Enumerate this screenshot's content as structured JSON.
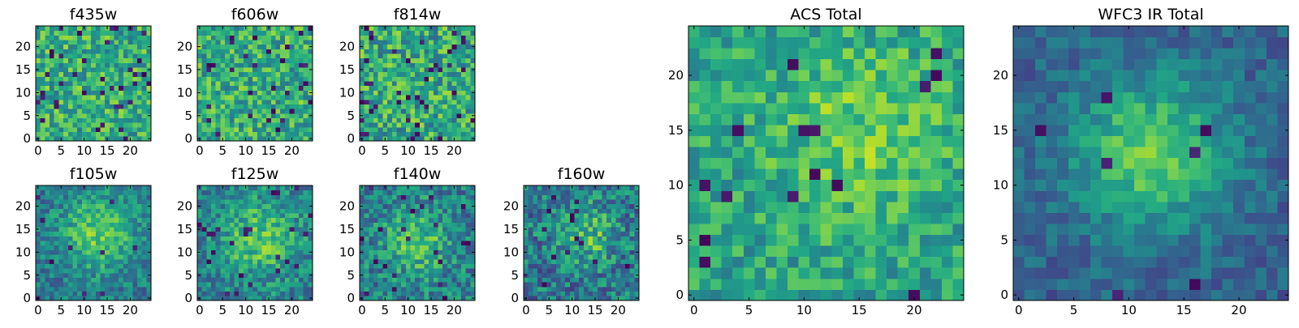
{
  "figure": {
    "background": "#ffffff",
    "colormap": "viridis"
  },
  "chart_data": [
    {
      "type": "heatmap",
      "title": "f435w",
      "grid_size": 25,
      "xlim": [
        0,
        24
      ],
      "ylim": [
        0,
        24
      ],
      "xticks": [
        "0",
        "5",
        "10",
        "15",
        "20"
      ],
      "yticks": [
        "0",
        "5",
        "10",
        "15",
        "20"
      ],
      "pattern": "noise",
      "seed": 3,
      "peak": 0.0,
      "base": 0.62,
      "noise": 0.24,
      "speckle": 0.05
    },
    {
      "type": "heatmap",
      "title": "f606w",
      "grid_size": 25,
      "xlim": [
        0,
        24
      ],
      "ylim": [
        0,
        24
      ],
      "xticks": [
        "0",
        "5",
        "10",
        "15",
        "20"
      ],
      "yticks": [
        "0",
        "5",
        "10",
        "15",
        "20"
      ],
      "pattern": "noise",
      "seed": 7,
      "peak": 0.0,
      "base": 0.62,
      "noise": 0.24,
      "speckle": 0.04
    },
    {
      "type": "heatmap",
      "title": "f814w",
      "grid_size": 25,
      "xlim": [
        0,
        24
      ],
      "ylim": [
        0,
        24
      ],
      "xticks": [
        "0",
        "5",
        "10",
        "15",
        "20"
      ],
      "yticks": [
        "0",
        "5",
        "10",
        "15",
        "20"
      ],
      "pattern": "noise",
      "seed": 11,
      "peak": 0.0,
      "base": 0.6,
      "noise": 0.26,
      "speckle": 0.06
    },
    {
      "type": "heatmap",
      "title": "f105w",
      "grid_size": 25,
      "xlim": [
        0,
        24
      ],
      "ylim": [
        0,
        24
      ],
      "xticks": [
        "0",
        "5",
        "10",
        "15",
        "20"
      ],
      "yticks": [
        "0",
        "5",
        "10",
        "15",
        "20"
      ],
      "pattern": "source",
      "seed": 19,
      "center": [
        13,
        14
      ],
      "peak": 0.35,
      "sigma": 5.5,
      "base": 0.5,
      "noise": 0.18,
      "speckle": 0.02
    },
    {
      "type": "heatmap",
      "title": "f125w",
      "grid_size": 25,
      "xlim": [
        0,
        24
      ],
      "ylim": [
        0,
        24
      ],
      "xticks": [
        "0",
        "5",
        "10",
        "15",
        "20"
      ],
      "yticks": [
        "0",
        "5",
        "10",
        "15",
        "20"
      ],
      "pattern": "source",
      "seed": 23,
      "center": [
        13,
        13
      ],
      "peak": 0.3,
      "sigma": 5.5,
      "base": 0.52,
      "noise": 0.2,
      "speckle": 0.03
    },
    {
      "type": "heatmap",
      "title": "f140w",
      "grid_size": 25,
      "xlim": [
        0,
        24
      ],
      "ylim": [
        0,
        24
      ],
      "xticks": [
        "0",
        "5",
        "10",
        "15",
        "20"
      ],
      "yticks": [
        "0",
        "5",
        "10",
        "15",
        "20"
      ],
      "pattern": "source",
      "seed": 29,
      "center": [
        12,
        12
      ],
      "peak": 0.28,
      "sigma": 5.0,
      "base": 0.5,
      "noise": 0.22,
      "speckle": 0.03
    },
    {
      "type": "heatmap",
      "title": "f160w",
      "grid_size": 25,
      "xlim": [
        0,
        24
      ],
      "ylim": [
        0,
        24
      ],
      "xticks": [
        "0",
        "5",
        "10",
        "15",
        "20"
      ],
      "yticks": [
        "0",
        "5",
        "10",
        "15",
        "20"
      ],
      "pattern": "source",
      "seed": 31,
      "center": [
        13,
        14
      ],
      "peak": 0.3,
      "sigma": 4.5,
      "base": 0.48,
      "noise": 0.24,
      "speckle": 0.03
    },
    {
      "type": "heatmap",
      "title": "ACS Total",
      "grid_size": 25,
      "xlim": [
        0,
        24
      ],
      "ylim": [
        0,
        24
      ],
      "xticks": [
        "0",
        "5",
        "10",
        "15",
        "20"
      ],
      "yticks": [
        "0",
        "5",
        "10",
        "15",
        "20"
      ],
      "pattern": "source",
      "seed": 37,
      "center": [
        15,
        15
      ],
      "peak": 0.18,
      "sigma": 6.0,
      "base": 0.62,
      "noise": 0.18,
      "speckle": 0.025
    },
    {
      "type": "heatmap",
      "title": "WFC3 IR Total",
      "grid_size": 25,
      "xlim": [
        0,
        24
      ],
      "ylim": [
        0,
        24
      ],
      "xticks": [
        "0",
        "5",
        "10",
        "15",
        "20"
      ],
      "yticks": [
        "0",
        "5",
        "10",
        "15",
        "20"
      ],
      "pattern": "source",
      "seed": 41,
      "center": [
        12,
        13
      ],
      "peak": 0.45,
      "sigma": 5.0,
      "base": 0.42,
      "noise": 0.12,
      "speckle": 0.015
    }
  ]
}
